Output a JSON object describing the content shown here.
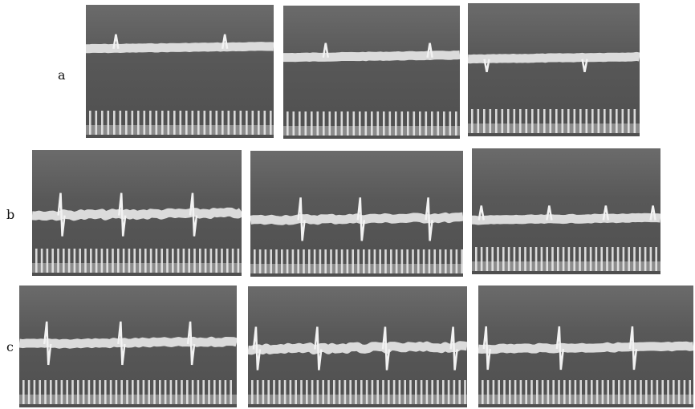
{
  "figure": {
    "rows": [
      {
        "label": "a",
        "panels": [
          {
            "trace_level": 0.33,
            "spikes": [
              0.16,
              0.74
            ],
            "spike_dir": "up",
            "noise": 0.2
          },
          {
            "trace_level": 0.39,
            "spikes": [
              0.24,
              0.83
            ],
            "spike_dir": "up",
            "noise": 0.2
          },
          {
            "trace_level": 0.42,
            "spikes": [
              0.11,
              0.68
            ],
            "spike_dir": "down",
            "noise": 0.2
          }
        ]
      },
      {
        "label": "b",
        "panels": [
          {
            "trace_level": 0.52,
            "spikes": [
              0.14,
              0.43,
              0.77
            ],
            "spike_dir": "both",
            "noise": 0.9
          },
          {
            "trace_level": 0.55,
            "spikes": [
              0.24,
              0.52,
              0.84
            ],
            "spike_dir": "both",
            "noise": 0.7
          },
          {
            "trace_level": 0.57,
            "spikes": [
              0.05,
              0.41,
              0.71,
              0.96
            ],
            "spike_dir": "up",
            "noise": 0.3
          }
        ]
      },
      {
        "label": "c",
        "panels": [
          {
            "trace_level": 0.48,
            "spikes": [
              0.13,
              0.47,
              0.79
            ],
            "spike_dir": "both",
            "noise": 0.6
          },
          {
            "trace_level": 0.52,
            "spikes": [
              0.04,
              0.32,
              0.63,
              0.94
            ],
            "spike_dir": "both",
            "noise": 1.0
          },
          {
            "trace_level": 0.52,
            "spikes": [
              0.04,
              0.38,
              0.72
            ],
            "spike_dir": "both",
            "noise": 0.5
          }
        ]
      }
    ]
  }
}
